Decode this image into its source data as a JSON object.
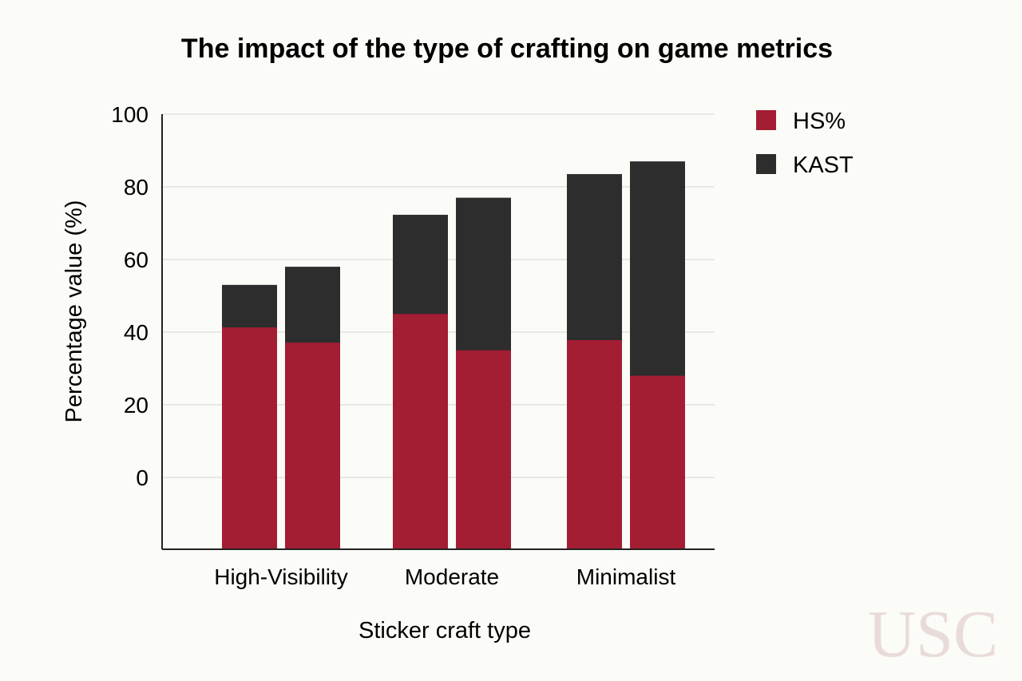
{
  "chart_data": {
    "type": "bar",
    "title": "The impact of the type of crafting on game metrics",
    "xlabel": "Sticker craft type",
    "ylabel": "Percentage value (%)",
    "categories": [
      "High-Visibility",
      "Moderate",
      "Minimalist"
    ],
    "bars_per_category": 2,
    "yticks": [
      "0",
      "20",
      "40",
      "60",
      "80",
      "100"
    ],
    "ylim": [
      -20,
      100
    ],
    "grid": true,
    "legend_position": "top-right",
    "series": [
      {
        "name": "HS%",
        "color": "#a31d33",
        "values": [
          [
            41.3,
            37.1
          ],
          [
            45.0,
            35.0
          ],
          [
            37.8,
            28.0
          ]
        ]
      },
      {
        "name": "KAST",
        "color": "#2d2d2d",
        "values": [
          [
            53.0,
            58.0
          ],
          [
            72.3,
            77.0
          ],
          [
            83.5,
            87.0
          ]
        ]
      }
    ],
    "watermark": "USC"
  }
}
